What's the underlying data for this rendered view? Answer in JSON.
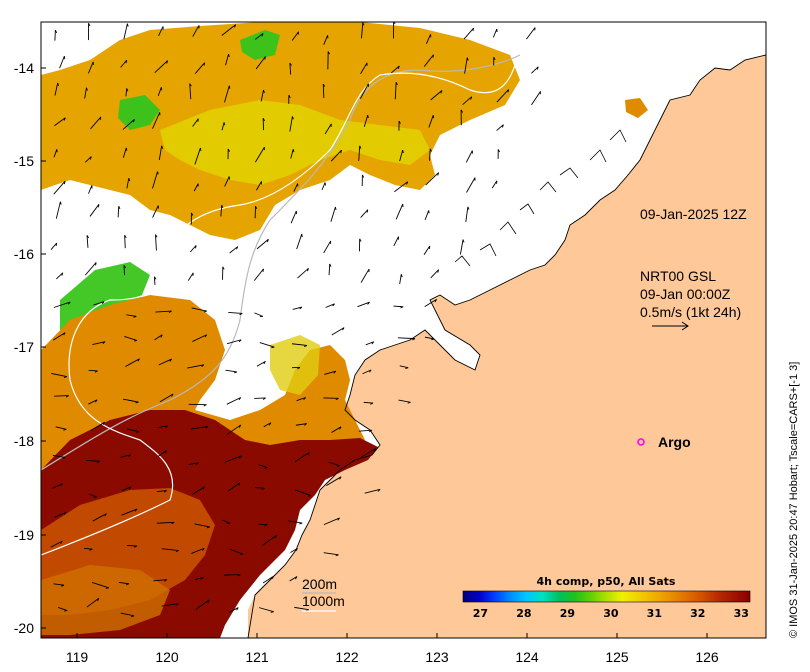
{
  "axes": {
    "x_ticks": [
      "119",
      "120",
      "121",
      "122",
      "123",
      "124",
      "125",
      "126"
    ],
    "y_ticks": [
      "-14",
      "-15",
      "-16",
      "-17",
      "-18",
      "-19",
      "-20"
    ]
  },
  "colors": {
    "land": "#fec898",
    "no_data": "#ffffff",
    "warm": "#8b0a00",
    "orange": "#e07a00",
    "yellow_orange": "#e2a800",
    "yellow": "#e6e600",
    "green": "#3cc21a",
    "argo_marker": "#ff00ff"
  },
  "labels": {
    "timestamp": "09-Jan-2025 12Z",
    "currents_source": "NRT00 GSL",
    "currents_time": "09-Jan 00:00Z",
    "currents_scale": "0.5m/s (1kt 24h)",
    "argo": "Argo",
    "isobath_1": "200m",
    "isobath_2": "1000m",
    "credit": "© IMOS 31-Jan-2025 20:47 Hobart; Tscale=CARS+[-1 3]"
  },
  "colorbar": {
    "title": "4h comp, p50, All Sats",
    "ticks": [
      "27",
      "28",
      "29",
      "30",
      "31",
      "32",
      "33"
    ],
    "min": 26.6,
    "max": 33.2,
    "colors": [
      "#00007f",
      "#0000c8",
      "#0040ff",
      "#0090ff",
      "#00c8ff",
      "#00e0c0",
      "#00c060",
      "#20c020",
      "#60d000",
      "#b0e000",
      "#f0f000",
      "#f0d000",
      "#f0b000",
      "#e89000",
      "#e07000",
      "#d05000",
      "#b82a00",
      "#a01400",
      "#8b0000"
    ]
  },
  "icons": {
    "argo": "argo-float-marker-icon",
    "scale_arrow": "current-scale-arrow-icon"
  }
}
